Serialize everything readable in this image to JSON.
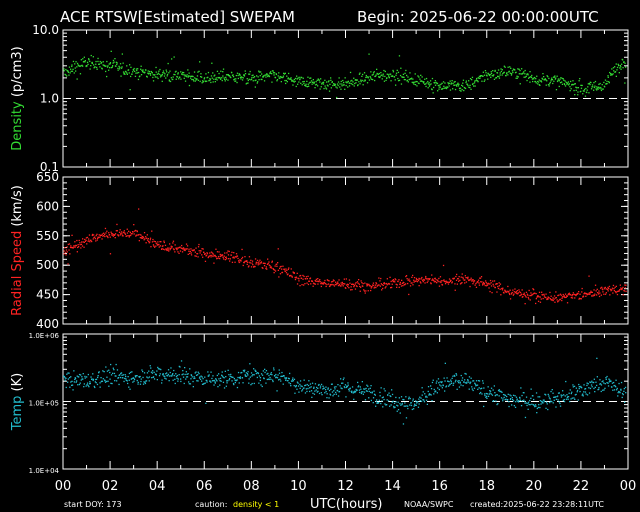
{
  "header": {
    "title": "ACE RTSW[Estimated] SWEPAM",
    "begin": "Begin: 2025-06-22 00:00:00UTC"
  },
  "footer": {
    "start_doy": "start DOY: 173",
    "caution_label": "caution:",
    "caution_text": "density < 1",
    "xlabel": "UTC(hours)",
    "source": "NOAA/SWPC",
    "created": "created:2025-06-22 23:28:11UTC"
  },
  "colors": {
    "density": "#33dd33",
    "speed": "#ff2222",
    "temp": "#22bbcc",
    "caution": "#ffff00",
    "axis": "#ffffff",
    "background": "#000000"
  },
  "chart_data": [
    {
      "type": "scatter",
      "name": "density",
      "ylabel": "Density (p/cm3)",
      "ylabel_colored_part": "Density",
      "ylabel_unit_part": "(p/cm3)",
      "yscale": "log",
      "ylim": [
        0.1,
        10
      ],
      "yticks": [
        0.1,
        1.0,
        10.0
      ],
      "ytick_labels": [
        "0.1",
        "1.0",
        "10.0"
      ],
      "reference_line": 1.0,
      "anchors_x": [
        0,
        1,
        2,
        3,
        4,
        5,
        6,
        7,
        8,
        9,
        10,
        11,
        12,
        13,
        14,
        15,
        16,
        17,
        18,
        19,
        20,
        21,
        22,
        23,
        24
      ],
      "anchors_y": [
        2.3,
        3.5,
        3.0,
        2.6,
        2.3,
        2.2,
        2.0,
        2.2,
        2.0,
        2.2,
        1.8,
        1.7,
        1.6,
        2.1,
        2.3,
        1.9,
        1.6,
        1.5,
        2.2,
        2.6,
        2.0,
        1.8,
        1.4,
        1.6,
        4.0
      ]
    },
    {
      "type": "scatter",
      "name": "speed",
      "ylabel": "Radial Speed (km/s)",
      "ylabel_colored_part": "Radial Speed",
      "ylabel_unit_part": "(km/s)",
      "yscale": "linear",
      "ylim": [
        400,
        650
      ],
      "yticks": [
        400,
        450,
        500,
        550,
        600,
        650
      ],
      "ytick_labels": [
        "400",
        "450",
        "500",
        "550",
        "600",
        "650"
      ],
      "anchors_x": [
        0,
        1,
        2,
        3,
        4,
        5,
        6,
        7,
        8,
        9,
        10,
        11,
        12,
        13,
        14,
        15,
        16,
        17,
        18,
        19,
        20,
        21,
        22,
        23,
        24
      ],
      "anchors_y": [
        525,
        545,
        555,
        555,
        535,
        528,
        520,
        518,
        505,
        500,
        478,
        470,
        470,
        465,
        470,
        475,
        475,
        478,
        470,
        455,
        450,
        445,
        450,
        458,
        462
      ]
    },
    {
      "type": "scatter",
      "name": "temp",
      "ylabel": "Temp (K)",
      "ylabel_colored_part": "Temp",
      "ylabel_unit_part": "(K)",
      "yscale": "log",
      "ylim": [
        10000,
        1000000
      ],
      "yticks": [
        10000,
        100000,
        1000000
      ],
      "ytick_labels": [
        "1.0E+04",
        "1.0E+05",
        "1.0E+06"
      ],
      "reference_line": 100000,
      "anchors_x": [
        0,
        1,
        2,
        3,
        4,
        5,
        6,
        7,
        8,
        9,
        10,
        11,
        12,
        13,
        14,
        15,
        16,
        17,
        18,
        19,
        20,
        21,
        22,
        23,
        24
      ],
      "anchors_y": [
        220000,
        200000,
        240000,
        230000,
        270000,
        250000,
        220000,
        220000,
        240000,
        260000,
        180000,
        150000,
        160000,
        140000,
        100000,
        95000,
        180000,
        210000,
        140000,
        110000,
        100000,
        110000,
        150000,
        200000,
        120000
      ]
    }
  ],
  "x_axis": {
    "xlim": [
      0,
      24
    ],
    "major_ticks": [
      0,
      2,
      4,
      6,
      8,
      10,
      12,
      14,
      16,
      18,
      20,
      22,
      24
    ],
    "tick_labels": [
      "00",
      "02",
      "04",
      "06",
      "08",
      "10",
      "12",
      "14",
      "16",
      "18",
      "20",
      "22",
      "00"
    ]
  }
}
